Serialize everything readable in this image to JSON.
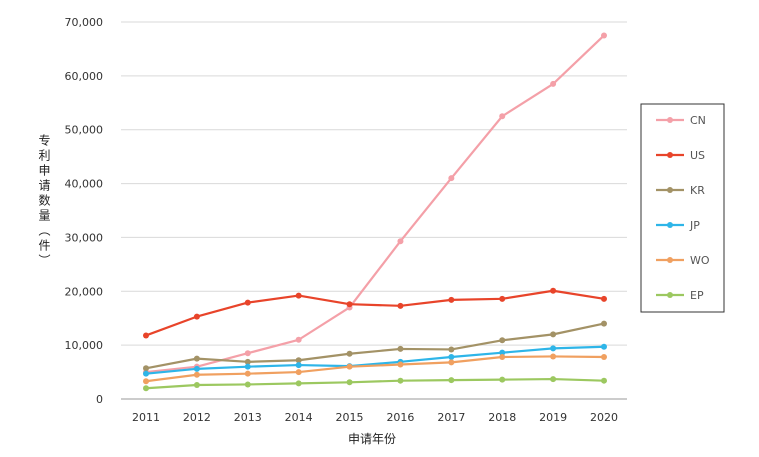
{
  "chart_data": {
    "type": "line",
    "title": "",
    "xlabel": "申请年份",
    "ylabel": "专利申请数量（件）",
    "ylim": [
      0,
      70000
    ],
    "yticks": [
      0,
      10000,
      20000,
      30000,
      40000,
      50000,
      60000,
      70000
    ],
    "ytick_labels": [
      "0",
      "10,000",
      "20,000",
      "30,000",
      "40,000",
      "50,000",
      "60,000",
      "70,000"
    ],
    "categories": [
      "2011",
      "2012",
      "2013",
      "2014",
      "2015",
      "2016",
      "2017",
      "2018",
      "2019",
      "2020"
    ],
    "grid": "horizontal",
    "legend_position": "right",
    "series": [
      {
        "name": "CN",
        "color": "#f4a0a8",
        "values": [
          5000,
          6000,
          8500,
          11000,
          17000,
          29300,
          41000,
          52500,
          58500,
          67500
        ]
      },
      {
        "name": "US",
        "color": "#e8442a",
        "values": [
          11800,
          15300,
          17900,
          19200,
          17600,
          17300,
          18400,
          18600,
          20100,
          18600
        ]
      },
      {
        "name": "KR",
        "color": "#a39266",
        "values": [
          5700,
          7500,
          6900,
          7200,
          8400,
          9300,
          9200,
          10900,
          12000,
          14000
        ]
      },
      {
        "name": "JP",
        "color": "#2eb5e8",
        "values": [
          4700,
          5600,
          6000,
          6300,
          6100,
          6900,
          7800,
          8600,
          9400,
          9700
        ]
      },
      {
        "name": "WO",
        "color": "#f0a060",
        "values": [
          3300,
          4500,
          4700,
          5000,
          6000,
          6400,
          6800,
          7800,
          7900,
          7800
        ]
      },
      {
        "name": "EP",
        "color": "#9cc860",
        "values": [
          2000,
          2600,
          2700,
          2900,
          3100,
          3400,
          3500,
          3600,
          3700,
          3400
        ]
      }
    ]
  }
}
